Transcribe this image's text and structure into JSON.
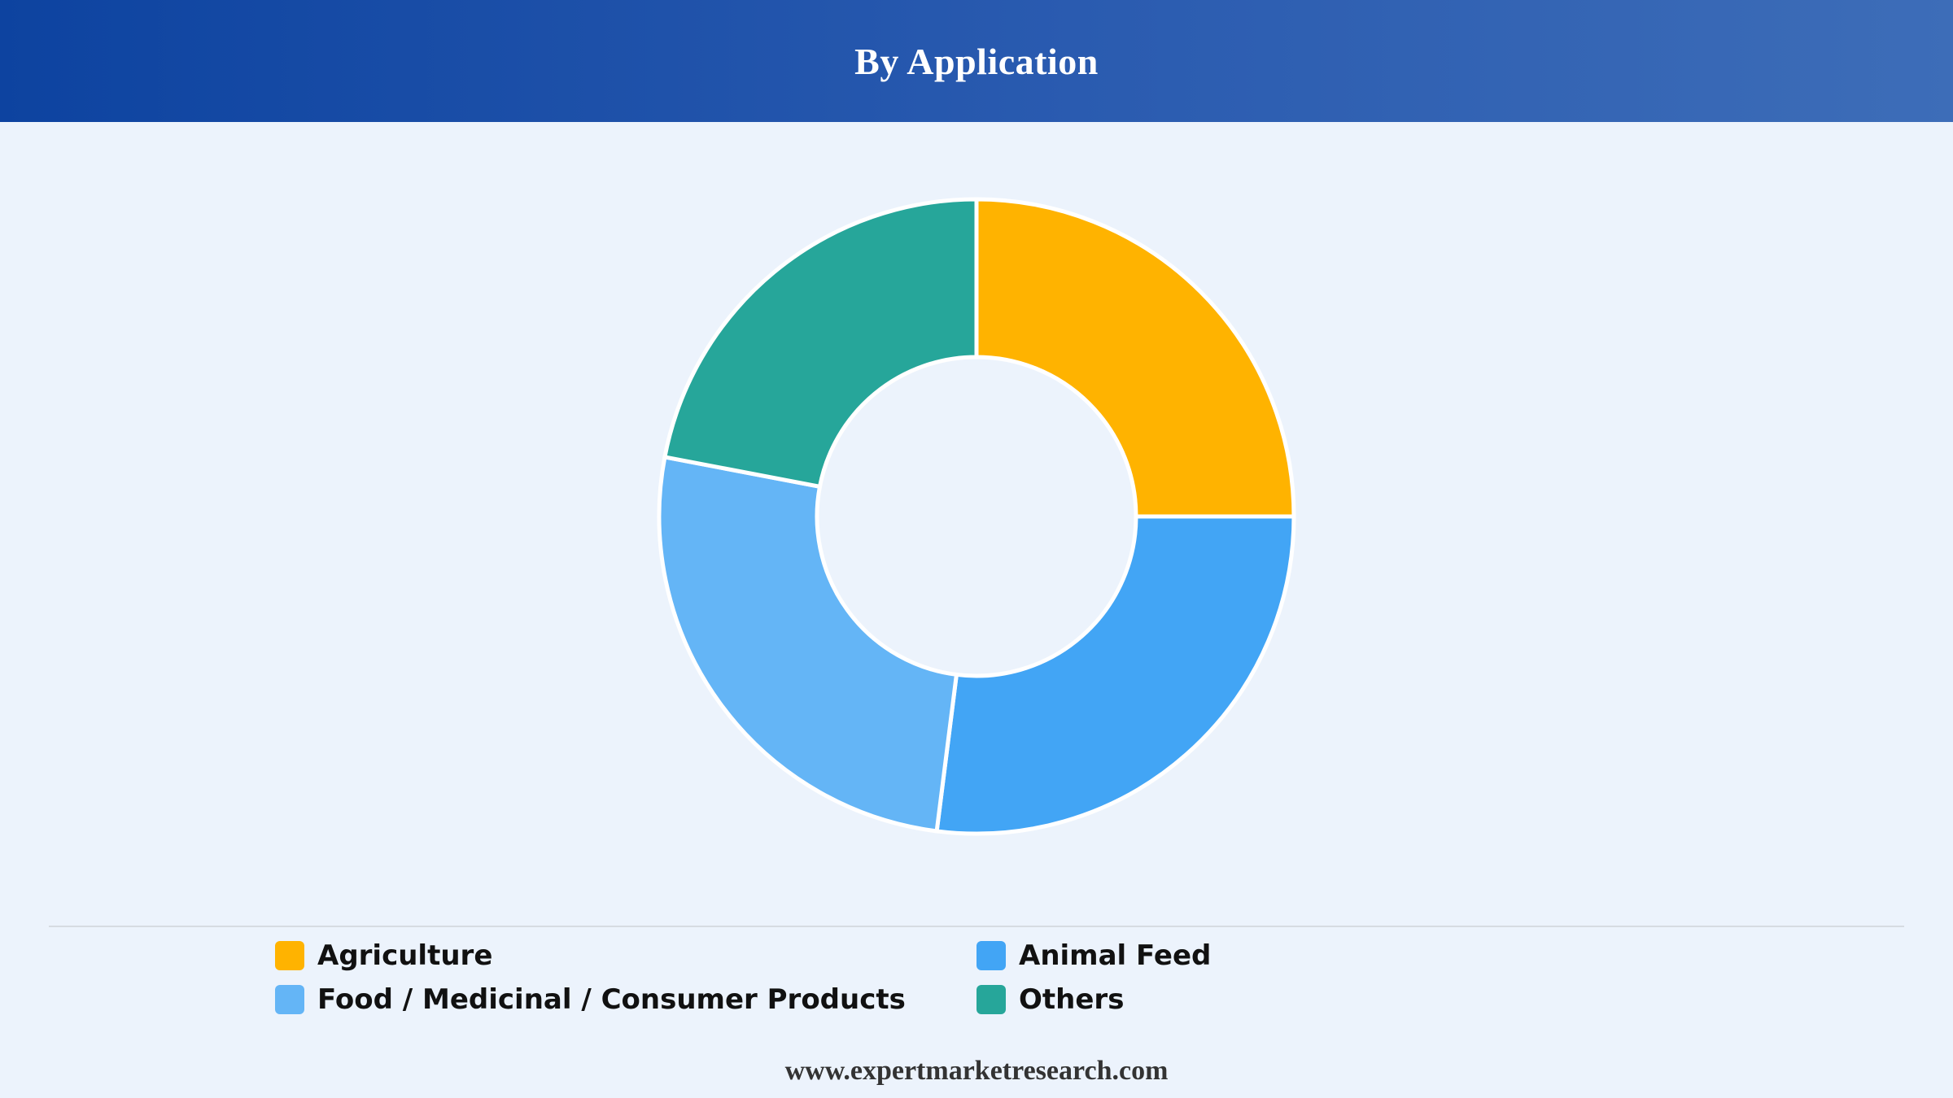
{
  "header": {
    "title": "By Application"
  },
  "footer": {
    "url": "www.expertmarketresearch.com"
  },
  "chart_data": {
    "type": "pie",
    "title": "By Application",
    "donut": true,
    "legend_position": "bottom",
    "categories": [
      "Agriculture",
      "Animal Feed",
      "Food / Medicinal / Consumer Products",
      "Others"
    ],
    "values": [
      25,
      27,
      26,
      22
    ],
    "colors": [
      "#ffb300",
      "#42a5f5",
      "#64b5f6",
      "#26a69a"
    ]
  }
}
